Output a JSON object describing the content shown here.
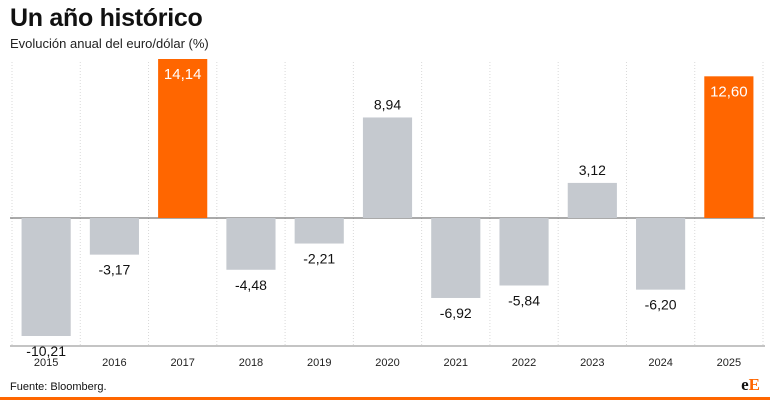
{
  "header": {
    "title": "Un año histórico",
    "subtitle": "Evolución anual del euro/dólar (%)"
  },
  "footer": {
    "source": "Fuente: Bloomberg.",
    "logo_left": "e",
    "logo_right": "E"
  },
  "colors": {
    "negative_bar": "#c5c9cf",
    "positive_bar": "#c5c9cf",
    "highlight_bar": "#ff6600",
    "accent": "#ff6600"
  },
  "chart_data": {
    "type": "bar",
    "title": "Un año histórico",
    "subtitle": "Evolución anual del euro/dólar (%)",
    "categories": [
      "2015",
      "2016",
      "2017",
      "2018",
      "2019",
      "2020",
      "2021",
      "2022",
      "2023",
      "2024",
      "2025"
    ],
    "values": [
      -10.21,
      -3.17,
      14.14,
      -4.48,
      -2.21,
      8.94,
      -6.92,
      -5.84,
      3.12,
      -6.2,
      12.6
    ],
    "labels": [
      "-10,21",
      "-3,17",
      "14,14",
      "-4,48",
      "-2,21",
      "8,94",
      "-6,92",
      "-5,84",
      "3,12",
      "-6,20",
      "12,60"
    ],
    "highlight": [
      "2017",
      "2025"
    ],
    "xlabel": "",
    "ylabel": "",
    "ylim": [
      -10.21,
      14.14
    ],
    "grid": "vertical"
  }
}
